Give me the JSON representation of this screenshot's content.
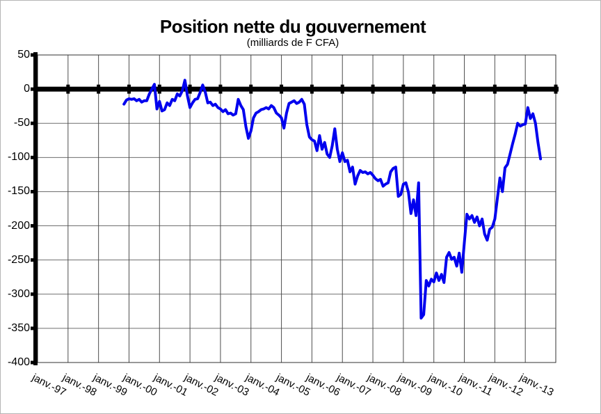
{
  "title": "Position nette du gouvernement",
  "subtitle": "(milliards de F CFA)",
  "colors": {
    "line": "#0000EE",
    "axis": "#000000",
    "grid_h": "#6e6e6e",
    "grid_v": "#4d4d4d",
    "frame": "#303030",
    "background": "#ffffff",
    "text": "#000000"
  },
  "chart_data": {
    "type": "line",
    "title": "Position nette du gouvernement",
    "subtitle": "(milliards de F CFA)",
    "ylabel": "",
    "xlabel": "",
    "unit": "milliards de F CFA",
    "ylim": [
      -400,
      50
    ],
    "y_ticks": [
      50,
      0,
      -50,
      -100,
      -150,
      -200,
      -250,
      -300,
      -350,
      -400
    ],
    "x_tick_labels": [
      "janv.-97",
      "janv.-98",
      "janv.-99",
      "janv.-00",
      "janv.-01",
      "janv.-02",
      "janv.-03",
      "janv.-04",
      "janv.-05",
      "janv.-06",
      "janv.-07",
      "janv.-08",
      "janv.-09",
      "janv.-10",
      "janv.-11",
      "janv.-12",
      "janv.-13"
    ],
    "x_months_per_tick": 12,
    "x_total_months": 204,
    "grid": true,
    "legend_position": "none",
    "zero_line_emphasis": true,
    "series": [
      {
        "name": "Position nette du gouvernement (milliards de F CFA)",
        "start_label": "nov.-99",
        "start_month_index": 34,
        "monthly_values": [
          -22,
          -16,
          -14,
          -15,
          -14,
          -17,
          -15,
          -19,
          -17,
          -17,
          -7,
          0,
          7,
          -29,
          -18,
          -32,
          -30,
          -20,
          -24,
          -15,
          -17,
          -7,
          -10,
          -2,
          13,
          -10,
          -27,
          -20,
          -15,
          -14,
          -5,
          6,
          -4,
          -20,
          -19,
          -24,
          -22,
          -27,
          -29,
          -33,
          -30,
          -36,
          -35,
          -38,
          -36,
          -15,
          -24,
          -30,
          -55,
          -72,
          -61,
          -42,
          -35,
          -33,
          -30,
          -29,
          -27,
          -29,
          -24,
          -27,
          -35,
          -38,
          -42,
          -57,
          -35,
          -21,
          -19,
          -17,
          -21,
          -19,
          -15,
          -22,
          -52,
          -70,
          -74,
          -76,
          -90,
          -68,
          -88,
          -78,
          -95,
          -100,
          -83,
          -58,
          -88,
          -106,
          -93,
          -106,
          -104,
          -121,
          -114,
          -139,
          -127,
          -119,
          -122,
          -121,
          -124,
          -122,
          -126,
          -131,
          -134,
          -132,
          -142,
          -139,
          -137,
          -121,
          -116,
          -114,
          -157,
          -154,
          -139,
          -137,
          -151,
          -182,
          -162,
          -185,
          -137,
          -335,
          -330,
          -280,
          -288,
          -278,
          -282,
          -269,
          -280,
          -271,
          -283,
          -246,
          -239,
          -249,
          -246,
          -259,
          -240,
          -268,
          -225,
          -183,
          -190,
          -185,
          -195,
          -187,
          -200,
          -190,
          -212,
          -221,
          -205,
          -202,
          -190,
          -160,
          -130,
          -150,
          -115,
          -110,
          -95,
          -80,
          -66,
          -50,
          -54,
          -52,
          -51,
          -27,
          -43,
          -36,
          -50,
          -78,
          -102
        ]
      }
    ]
  }
}
